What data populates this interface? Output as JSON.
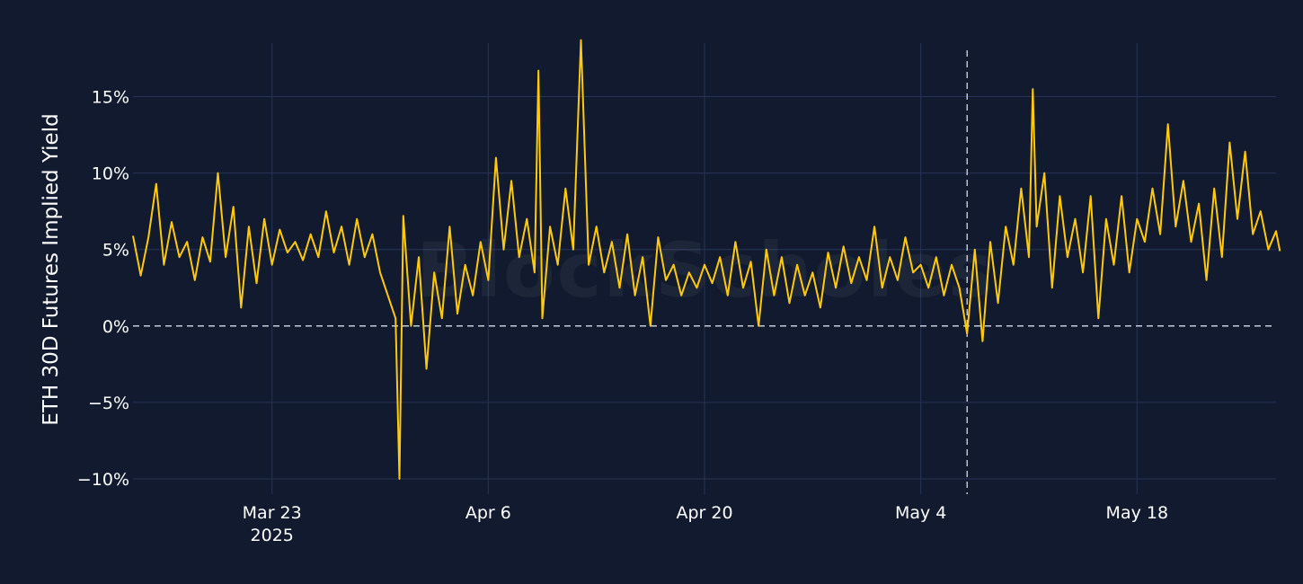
{
  "chart_data": {
    "type": "line",
    "title": "",
    "xlabel": "",
    "ylabel": "ETH 30D Futures Implied Yield",
    "watermark": "BlockScholes",
    "xlim": [
      "2025-03-14",
      "2025-05-27"
    ],
    "ylim": [
      -11,
      18.5
    ],
    "y_unit": "%",
    "grid": true,
    "legend": "none",
    "colors": {
      "background": "#111a2e",
      "line": "#ffc90e",
      "grid": "#26345a",
      "zero_line": "#d8dce6",
      "event_line": "#d8dce6"
    },
    "x_ticks": [
      {
        "date": "2025-03-23",
        "label": "Mar 23",
        "sublabel": "2025"
      },
      {
        "date": "2025-04-06",
        "label": "Apr 6"
      },
      {
        "date": "2025-04-20",
        "label": "Apr 20"
      },
      {
        "date": "2025-05-04",
        "label": "May 4"
      },
      {
        "date": "2025-05-18",
        "label": "May 18"
      }
    ],
    "y_ticks": [
      {
        "value": -10,
        "label": "−10%"
      },
      {
        "value": -5,
        "label": "−5%"
      },
      {
        "value": 0,
        "label": "0%"
      },
      {
        "value": 5,
        "label": "5%"
      },
      {
        "value": 10,
        "label": "10%"
      },
      {
        "value": 15,
        "label": "15%"
      }
    ],
    "vertical_marker": {
      "date": "2025-05-07",
      "style": "dashed"
    },
    "horizontal_marker": {
      "value": 0,
      "style": "dashed"
    },
    "series": [
      {
        "points": [
          [
            "2025-03-14",
            5.9
          ],
          [
            "2025-03-14 12:00",
            3.3
          ],
          [
            "2025-03-15",
            5.8
          ],
          [
            "2025-03-15 12:00",
            9.3
          ],
          [
            "2025-03-16",
            4.0
          ],
          [
            "2025-03-16 12:00",
            6.8
          ],
          [
            "2025-03-17",
            4.5
          ],
          [
            "2025-03-17 12:00",
            5.5
          ],
          [
            "2025-03-18",
            3.0
          ],
          [
            "2025-03-18 12:00",
            5.8
          ],
          [
            "2025-03-19",
            4.2
          ],
          [
            "2025-03-19 12:00",
            10.0
          ],
          [
            "2025-03-20",
            4.5
          ],
          [
            "2025-03-20 12:00",
            7.8
          ],
          [
            "2025-03-21",
            1.2
          ],
          [
            "2025-03-21 12:00",
            6.5
          ],
          [
            "2025-03-22",
            2.8
          ],
          [
            "2025-03-22 12:00",
            7.0
          ],
          [
            "2025-03-23",
            4.0
          ],
          [
            "2025-03-23 12:00",
            6.3
          ],
          [
            "2025-03-24",
            4.8
          ],
          [
            "2025-03-24 12:00",
            5.5
          ],
          [
            "2025-03-25",
            4.3
          ],
          [
            "2025-03-25 12:00",
            6.0
          ],
          [
            "2025-03-26",
            4.5
          ],
          [
            "2025-03-26 12:00",
            7.5
          ],
          [
            "2025-03-27",
            4.8
          ],
          [
            "2025-03-27 12:00",
            6.5
          ],
          [
            "2025-03-28",
            4.0
          ],
          [
            "2025-03-28 12:00",
            7.0
          ],
          [
            "2025-03-29",
            4.5
          ],
          [
            "2025-03-29 12:00",
            6.0
          ],
          [
            "2025-03-30",
            3.5
          ],
          [
            "2025-03-30 12:00",
            2.0
          ],
          [
            "2025-03-31",
            0.5
          ],
          [
            "2025-03-31 06:00",
            -10.0
          ],
          [
            "2025-03-31 12:00",
            7.2
          ],
          [
            "2025-04-01",
            0.0
          ],
          [
            "2025-04-01 12:00",
            4.5
          ],
          [
            "2025-04-02",
            -2.8
          ],
          [
            "2025-04-02 12:00",
            3.5
          ],
          [
            "2025-04-03",
            0.5
          ],
          [
            "2025-04-03 12:00",
            6.5
          ],
          [
            "2025-04-04",
            0.8
          ],
          [
            "2025-04-04 12:00",
            4.0
          ],
          [
            "2025-04-05",
            2.0
          ],
          [
            "2025-04-05 12:00",
            5.5
          ],
          [
            "2025-04-06",
            3.0
          ],
          [
            "2025-04-06 12:00",
            11.0
          ],
          [
            "2025-04-07",
            5.0
          ],
          [
            "2025-04-07 12:00",
            9.5
          ],
          [
            "2025-04-08",
            4.5
          ],
          [
            "2025-04-08 12:00",
            7.0
          ],
          [
            "2025-04-09",
            3.5
          ],
          [
            "2025-04-09 06:00",
            16.7
          ],
          [
            "2025-04-09 12:00",
            0.5
          ],
          [
            "2025-04-10",
            6.5
          ],
          [
            "2025-04-10 12:00",
            4.0
          ],
          [
            "2025-04-11",
            9.0
          ],
          [
            "2025-04-11 12:00",
            5.0
          ],
          [
            "2025-04-12",
            18.7
          ],
          [
            "2025-04-12 12:00",
            4.0
          ],
          [
            "2025-04-13",
            6.5
          ],
          [
            "2025-04-13 12:00",
            3.5
          ],
          [
            "2025-04-14",
            5.5
          ],
          [
            "2025-04-14 12:00",
            2.5
          ],
          [
            "2025-04-15",
            6.0
          ],
          [
            "2025-04-15 12:00",
            2.0
          ],
          [
            "2025-04-16",
            4.5
          ],
          [
            "2025-04-16 12:00",
            0.0
          ],
          [
            "2025-04-17",
            5.8
          ],
          [
            "2025-04-17 12:00",
            3.0
          ],
          [
            "2025-04-18",
            4.0
          ],
          [
            "2025-04-18 12:00",
            2.0
          ],
          [
            "2025-04-19",
            3.5
          ],
          [
            "2025-04-19 12:00",
            2.5
          ],
          [
            "2025-04-20",
            4.0
          ],
          [
            "2025-04-20 12:00",
            2.8
          ],
          [
            "2025-04-21",
            4.5
          ],
          [
            "2025-04-21 12:00",
            2.0
          ],
          [
            "2025-04-22",
            5.5
          ],
          [
            "2025-04-22 12:00",
            2.5
          ],
          [
            "2025-04-23",
            4.2
          ],
          [
            "2025-04-23 12:00",
            0.0
          ],
          [
            "2025-04-24",
            5.0
          ],
          [
            "2025-04-24 12:00",
            2.0
          ],
          [
            "2025-04-25",
            4.5
          ],
          [
            "2025-04-25 12:00",
            1.5
          ],
          [
            "2025-04-26",
            4.0
          ],
          [
            "2025-04-26 12:00",
            2.0
          ],
          [
            "2025-04-27",
            3.5
          ],
          [
            "2025-04-27 12:00",
            1.2
          ],
          [
            "2025-04-28",
            4.8
          ],
          [
            "2025-04-28 12:00",
            2.5
          ],
          [
            "2025-04-29",
            5.2
          ],
          [
            "2025-04-29 12:00",
            2.8
          ],
          [
            "2025-04-30",
            4.5
          ],
          [
            "2025-04-30 12:00",
            3.0
          ],
          [
            "2025-05-01",
            6.5
          ],
          [
            "2025-05-01 12:00",
            2.5
          ],
          [
            "2025-05-02",
            4.5
          ],
          [
            "2025-05-02 12:00",
            3.0
          ],
          [
            "2025-05-03",
            5.8
          ],
          [
            "2025-05-03 12:00",
            3.5
          ],
          [
            "2025-05-04",
            4.0
          ],
          [
            "2025-05-04 12:00",
            2.5
          ],
          [
            "2025-05-05",
            4.5
          ],
          [
            "2025-05-05 12:00",
            2.0
          ],
          [
            "2025-05-06",
            4.0
          ],
          [
            "2025-05-06 12:00",
            2.5
          ],
          [
            "2025-05-07",
            -0.5
          ],
          [
            "2025-05-07 12:00",
            5.0
          ],
          [
            "2025-05-08",
            -1.0
          ],
          [
            "2025-05-08 12:00",
            5.5
          ],
          [
            "2025-05-09",
            1.5
          ],
          [
            "2025-05-09 12:00",
            6.5
          ],
          [
            "2025-05-10",
            4.0
          ],
          [
            "2025-05-10 12:00",
            9.0
          ],
          [
            "2025-05-11",
            4.5
          ],
          [
            "2025-05-11 06:00",
            15.5
          ],
          [
            "2025-05-11 12:00",
            6.5
          ],
          [
            "2025-05-12",
            10.0
          ],
          [
            "2025-05-12 12:00",
            2.5
          ],
          [
            "2025-05-13",
            8.5
          ],
          [
            "2025-05-13 12:00",
            4.5
          ],
          [
            "2025-05-14",
            7.0
          ],
          [
            "2025-05-14 12:00",
            3.5
          ],
          [
            "2025-05-15",
            8.5
          ],
          [
            "2025-05-15 12:00",
            0.5
          ],
          [
            "2025-05-16",
            7.0
          ],
          [
            "2025-05-16 12:00",
            4.0
          ],
          [
            "2025-05-17",
            8.5
          ],
          [
            "2025-05-17 12:00",
            3.5
          ],
          [
            "2025-05-18",
            7.0
          ],
          [
            "2025-05-18 12:00",
            5.5
          ],
          [
            "2025-05-19",
            9.0
          ],
          [
            "2025-05-19 12:00",
            6.0
          ],
          [
            "2025-05-20",
            13.2
          ],
          [
            "2025-05-20 12:00",
            6.5
          ],
          [
            "2025-05-21",
            9.5
          ],
          [
            "2025-05-21 12:00",
            5.5
          ],
          [
            "2025-05-22",
            8.0
          ],
          [
            "2025-05-22 12:00",
            3.0
          ],
          [
            "2025-05-23",
            9.0
          ],
          [
            "2025-05-23 12:00",
            4.5
          ],
          [
            "2025-05-24",
            12.0
          ],
          [
            "2025-05-24 12:00",
            7.0
          ],
          [
            "2025-05-25",
            11.4
          ],
          [
            "2025-05-25 12:00",
            6.0
          ],
          [
            "2025-05-26",
            7.5
          ],
          [
            "2025-05-26 12:00",
            5.0
          ],
          [
            "2025-05-27",
            6.2
          ],
          [
            "2025-05-27 06:00",
            4.9
          ]
        ]
      }
    ]
  }
}
